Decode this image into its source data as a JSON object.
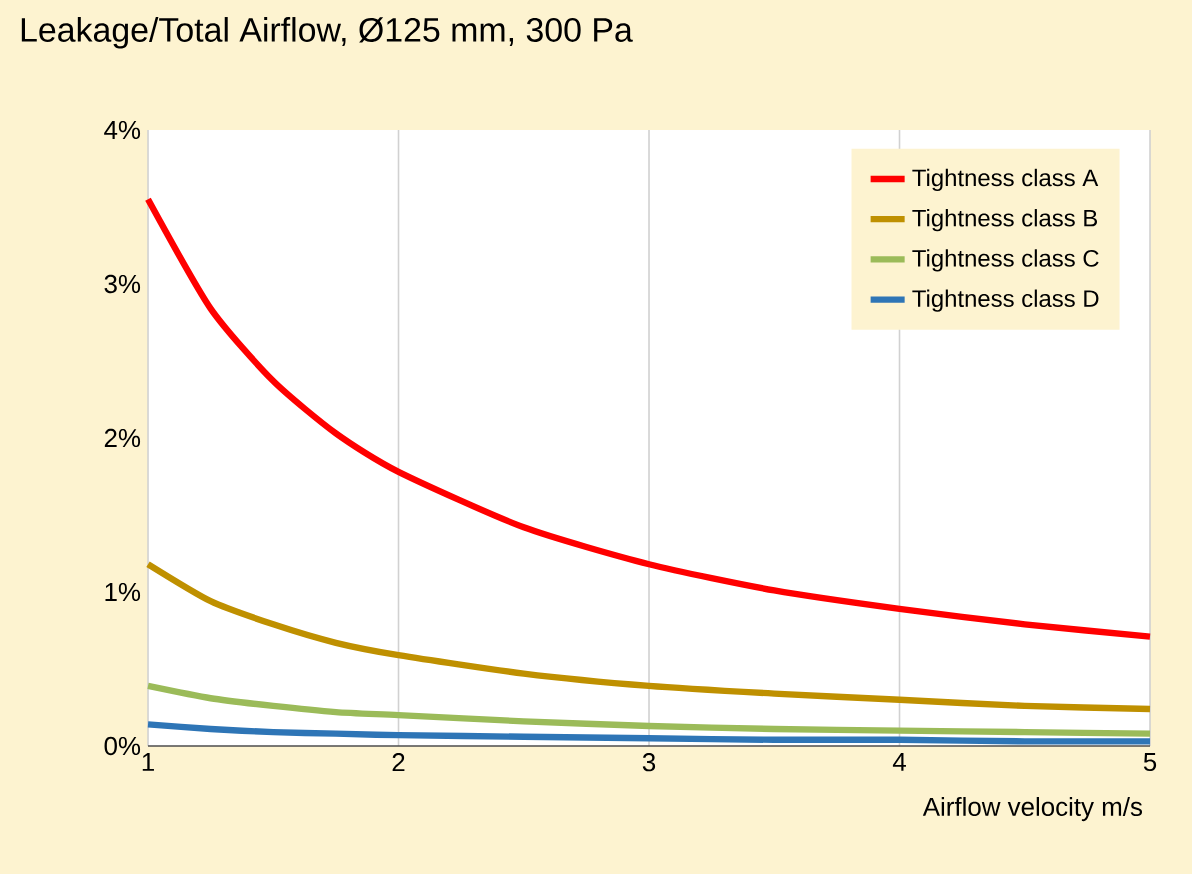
{
  "chart_data": {
    "type": "line",
    "title": "Leakage/Total Airflow, Ø125 mm, 300 Pa",
    "xlabel": "Airflow velocity m/s",
    "x": [
      1,
      1.25,
      1.5,
      1.75,
      2,
      2.5,
      3,
      3.5,
      4,
      4.5,
      5
    ],
    "series": [
      {
        "name": "Tightness class A",
        "color": "#ff0000",
        "values": [
          3.55,
          2.84,
          2.37,
          2.03,
          1.78,
          1.42,
          1.18,
          1.01,
          0.89,
          0.79,
          0.71
        ]
      },
      {
        "name": "Tightness class B",
        "color": "#bf9000",
        "values": [
          1.18,
          0.94,
          0.79,
          0.67,
          0.59,
          0.47,
          0.39,
          0.34,
          0.3,
          0.26,
          0.24
        ]
      },
      {
        "name": "Tightness class C",
        "color": "#9bbb59",
        "values": [
          0.39,
          0.31,
          0.26,
          0.22,
          0.2,
          0.16,
          0.13,
          0.11,
          0.1,
          0.09,
          0.08
        ]
      },
      {
        "name": "Tightness class  D",
        "color": "#2e75b6",
        "values": [
          0.14,
          0.11,
          0.09,
          0.08,
          0.07,
          0.06,
          0.05,
          0.04,
          0.04,
          0.03,
          0.03
        ]
      }
    ],
    "xlim": [
      1,
      5
    ],
    "xticks": [
      1,
      2,
      3,
      4,
      5
    ],
    "ylim": [
      0,
      4
    ],
    "yticks": [
      {
        "value": 0,
        "label": "0%"
      },
      {
        "value": 1,
        "label": "1%"
      },
      {
        "value": 2,
        "label": "2%"
      },
      {
        "value": 3,
        "label": "3%"
      },
      {
        "value": 4,
        "label": "4%"
      }
    ],
    "grid": "x",
    "legend": "top right",
    "marker": "none",
    "line_style": "solid"
  }
}
